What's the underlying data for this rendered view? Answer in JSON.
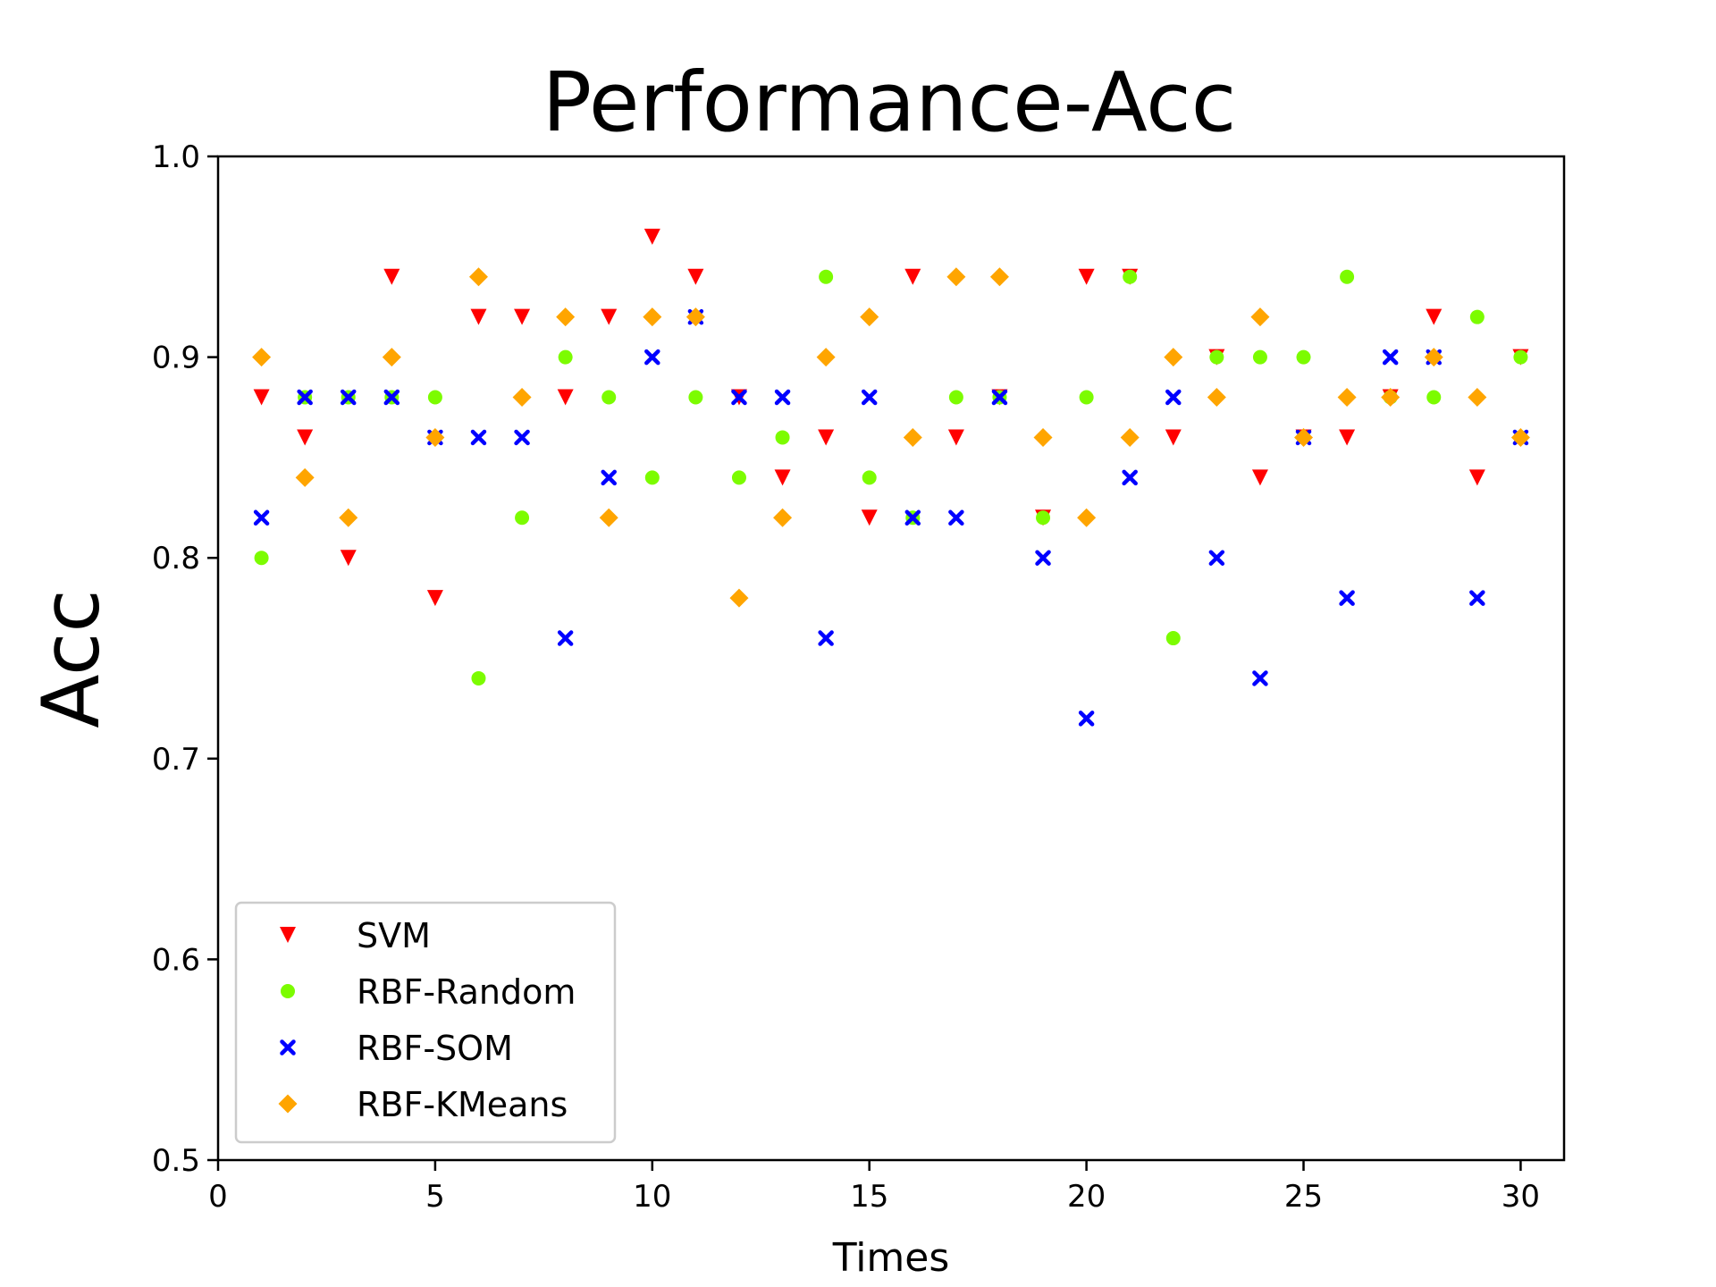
{
  "chart_data": {
    "type": "scatter",
    "title": "Performance-Acc",
    "xlabel": "Times",
    "ylabel": "Acc",
    "xlim": [
      0,
      31
    ],
    "ylim": [
      0.5,
      1.0
    ],
    "xticks": [
      0,
      5,
      10,
      15,
      20,
      25,
      30
    ],
    "yticks": [
      0.5,
      0.6,
      0.7,
      0.8,
      0.9,
      1.0
    ],
    "ytick_labels": [
      "0.5",
      "0.6",
      "0.7",
      "0.8",
      "0.9",
      "1.0"
    ],
    "grid": false,
    "legend_position": "lower-left",
    "x": [
      1,
      2,
      3,
      4,
      5,
      6,
      7,
      8,
      9,
      10,
      11,
      12,
      13,
      14,
      15,
      16,
      17,
      18,
      19,
      20,
      21,
      22,
      23,
      24,
      25,
      26,
      27,
      28,
      29,
      30
    ],
    "series": [
      {
        "name": "SVM",
        "marker": "triangle-down",
        "color": "#ff0000",
        "values": [
          0.88,
          0.86,
          0.8,
          0.94,
          0.78,
          0.92,
          0.92,
          0.88,
          0.92,
          0.96,
          0.94,
          0.88,
          0.84,
          0.86,
          0.82,
          0.94,
          0.86,
          0.88,
          0.82,
          0.94,
          0.94,
          0.86,
          0.9,
          0.84,
          0.86,
          0.86,
          0.88,
          0.92,
          0.84,
          0.9
        ]
      },
      {
        "name": "RBF-Random",
        "marker": "circle",
        "color": "#7cfc00",
        "values": [
          0.8,
          0.88,
          0.88,
          0.88,
          0.88,
          0.74,
          0.82,
          0.9,
          0.88,
          0.84,
          0.88,
          0.84,
          0.86,
          0.94,
          0.84,
          0.82,
          0.88,
          0.88,
          0.82,
          0.88,
          0.94,
          0.76,
          0.9,
          0.9,
          0.9,
          0.94,
          0.88,
          0.88,
          0.92,
          0.9
        ]
      },
      {
        "name": "RBF-SOM",
        "marker": "x",
        "color": "#0000ff",
        "values": [
          0.82,
          0.88,
          0.88,
          0.88,
          0.86,
          0.86,
          0.86,
          0.76,
          0.84,
          0.9,
          0.92,
          0.88,
          0.88,
          0.76,
          0.88,
          0.82,
          0.82,
          0.88,
          0.8,
          0.72,
          0.84,
          0.88,
          0.8,
          0.74,
          0.86,
          0.78,
          0.9,
          0.9,
          0.78,
          0.86
        ]
      },
      {
        "name": "RBF-KMeans",
        "marker": "diamond",
        "color": "#ffa500",
        "values": [
          0.9,
          0.84,
          0.82,
          0.9,
          0.86,
          0.94,
          0.88,
          0.92,
          0.82,
          0.92,
          0.92,
          0.78,
          0.82,
          0.9,
          0.92,
          0.86,
          0.94,
          0.94,
          0.86,
          0.82,
          0.86,
          0.9,
          0.88,
          0.92,
          0.86,
          0.88,
          0.88,
          0.9,
          0.88,
          0.86
        ]
      }
    ]
  }
}
